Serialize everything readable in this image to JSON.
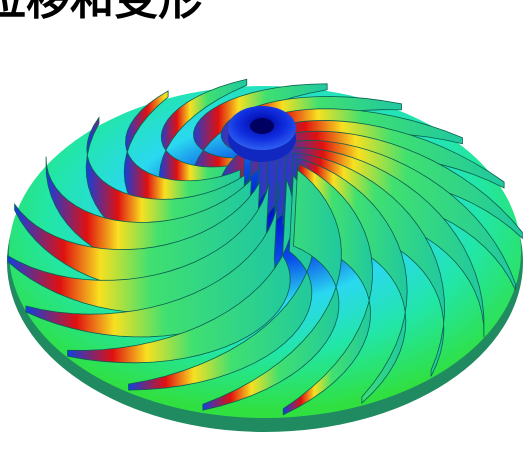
{
  "caption": "位移和变形"
}
